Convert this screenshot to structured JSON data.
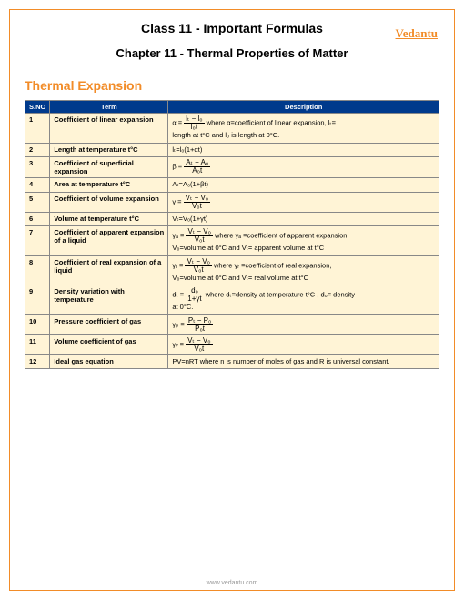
{
  "header": {
    "title1": "Class 11 - Important Formulas",
    "title2": "Chapter 11 - Thermal Properties of Matter",
    "logo_text": "Vedantu"
  },
  "section": {
    "heading": "Thermal Expansion"
  },
  "table": {
    "columns": [
      "S.NO",
      "Term",
      "Description"
    ],
    "header_bg": "#003a8c",
    "header_fg": "#ffffff",
    "row_bg": "#fff4d6",
    "rows": [
      {
        "n": "1",
        "term": "Coefficient of linear expansion",
        "formula_lhs": "α =",
        "num": "lₜ − l₀",
        "den": "l₀t",
        "suffix": " where α=coefficient of linear expansion, lₜ=",
        "extra": "length at t°C and l₀ is length at 0°C."
      },
      {
        "n": "2",
        "term": "Length at temperature t°C",
        "desc": "lₜ=l₀(1+αt)"
      },
      {
        "n": "3",
        "term": "Coefficient of superficial expansion",
        "formula_lhs": "β =",
        "num": "Aₜ − A₀",
        "den": "A₀t"
      },
      {
        "n": "4",
        "term": "Area at temperature t°C",
        "desc": "Aₜ=A₀(1+βt)"
      },
      {
        "n": "5",
        "term": "Coefficient of volume expansion",
        "formula_lhs": "γ =",
        "num": "Vₜ − V₀",
        "den": "V₀t"
      },
      {
        "n": "6",
        "term": "Volume at temperature t°C",
        "desc": "Vₜ=V₀(1+γt)"
      },
      {
        "n": "7",
        "term": "Coefficient of apparent expansion of a liquid",
        "formula_lhs": "γₐ =",
        "num": "Vₜ − V₀",
        "den": "V₀t",
        "suffix": " where γₐ =coefficient of apparent expansion,",
        "extra": "V₀=volume at 0°C and Vₜ= apparent volume at t°C"
      },
      {
        "n": "8",
        "term": "Coefficient of real expansion of a liquid",
        "formula_lhs": "γᵣ =",
        "num": "Vₜ − V₀",
        "den": "V₀t",
        "suffix": " where γᵣ =coefficient of real expansion,",
        "extra": "V₀=volume at 0°C and Vₜ= real volume at t°C"
      },
      {
        "n": "9",
        "term": "Density variation with temperature",
        "formula_lhs": "dₜ =",
        "num": "d₀",
        "den": "1+γt",
        "suffix": " where dₜ=density at temperature t°C , d₀= density",
        "extra": "at 0°C."
      },
      {
        "n": "10",
        "term": "Pressure coefficient of gas",
        "formula_lhs": "γₚ =",
        "num": "Pₜ − P₀",
        "den": "P₀t"
      },
      {
        "n": "11",
        "term": "Volume coefficient of gas",
        "formula_lhs": "γᵥ =",
        "num": "Vₜ − V₀",
        "den": "V₀t"
      },
      {
        "n": "12",
        "term": "Ideal gas equation",
        "desc": "PV=nRT where n is number of moles of gas and R is universal constant."
      }
    ]
  },
  "footer": {
    "text": "www.vedantu.com"
  }
}
